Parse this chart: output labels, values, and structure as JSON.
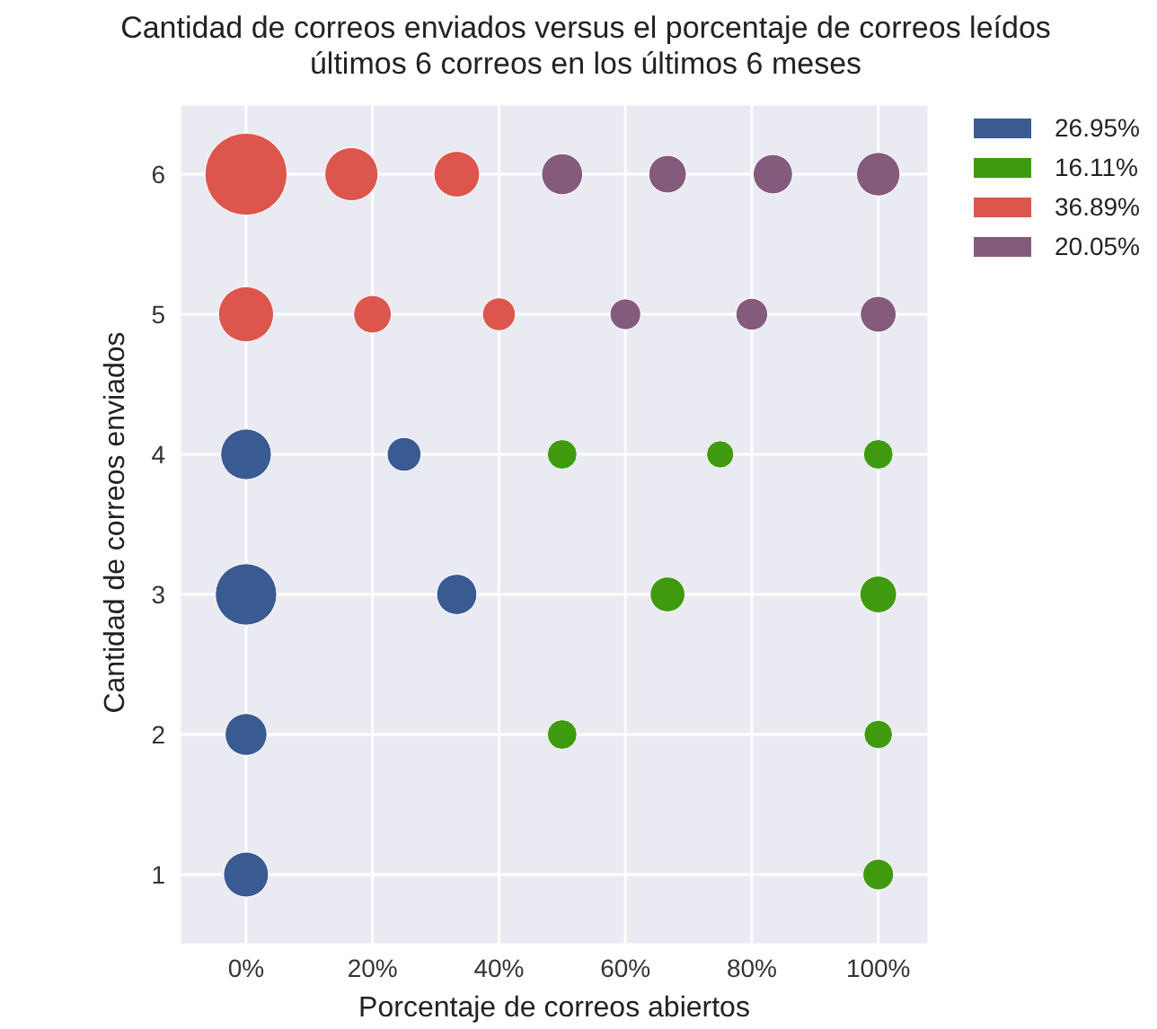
{
  "chart_data": {
    "type": "bubble",
    "title": "Cantidad de correos enviados versus el porcentaje de correos leídos",
    "subtitle": "últimos 6 correos en los últimos 6 meses",
    "xlabel": "Porcentaje de correos abiertos",
    "ylabel": "Cantidad de correos enviados",
    "xlim": [
      -10.5,
      108
    ],
    "xticks": [
      {
        "value": 0,
        "label": "0%"
      },
      {
        "value": 20,
        "label": "20%"
      },
      {
        "value": 40,
        "label": "40%"
      },
      {
        "value": 60,
        "label": "60%"
      },
      {
        "value": 80,
        "label": "80%"
      },
      {
        "value": 100,
        "label": "100%"
      }
    ],
    "ylim": [
      0.5,
      6.5
    ],
    "yticks": [
      1,
      2,
      3,
      4,
      5,
      6
    ],
    "grid": true,
    "legend": "top right",
    "series": [
      {
        "name": "26.95%",
        "color": "#3a5a92",
        "x": [
          0,
          25,
          0,
          33.33,
          0,
          0
        ],
        "values": [
          4,
          4,
          3,
          3,
          2,
          1
        ],
        "sizes": [
          0.38,
          0.17,
          0.56,
          0.24,
          0.26,
          0.3
        ]
      },
      {
        "name": "16.11%",
        "color": "#3f9a0f",
        "x": [
          50,
          75,
          100,
          66.67,
          100,
          50,
          100,
          100
        ],
        "values": [
          4,
          4,
          4,
          3,
          3,
          2,
          2,
          1
        ],
        "sizes": [
          0.13,
          0.11,
          0.13,
          0.18,
          0.2,
          0.13,
          0.12,
          0.14
        ]
      },
      {
        "name": "36.89%",
        "color": "#dc564d",
        "x": [
          0,
          16.67,
          33.33,
          0,
          20,
          40
        ],
        "values": [
          6,
          6,
          6,
          5,
          5,
          5
        ],
        "sizes": [
          1,
          0.42,
          0.31,
          0.45,
          0.21,
          0.16
        ]
      },
      {
        "name": "20.05%",
        "color": "#845a7d",
        "x": [
          50,
          66.67,
          83.33,
          100,
          60,
          80,
          100
        ],
        "values": [
          6,
          6,
          6,
          6,
          5,
          5,
          5
        ],
        "sizes": [
          0.25,
          0.21,
          0.23,
          0.28,
          0.14,
          0.15,
          0.19
        ]
      }
    ]
  }
}
